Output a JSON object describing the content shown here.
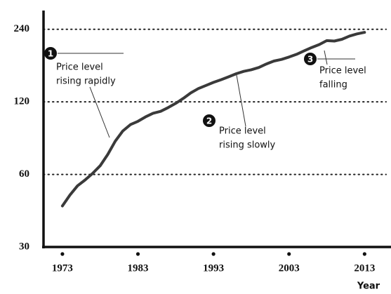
{
  "chart_data": {
    "type": "line",
    "x_label": "Year",
    "x": [
      1973,
      1974,
      1975,
      1976,
      1977,
      1978,
      1979,
      1980,
      1981,
      1982,
      1983,
      1984,
      1985,
      1986,
      1987,
      1988,
      1989,
      1990,
      1991,
      1992,
      1993,
      1994,
      1995,
      1996,
      1997,
      1998,
      1999,
      2000,
      2001,
      2002,
      2003,
      2004,
      2005,
      2006,
      2007,
      2008,
      2009,
      2010,
      2011,
      2012,
      2013
    ],
    "series": [
      {
        "name": "Price level",
        "color": "#3a3a3a",
        "values": [
          44.4,
          49.3,
          53.8,
          56.9,
          60.6,
          65.2,
          72.6,
          82.4,
          90.9,
          96.5,
          99.6,
          103.9,
          107.6,
          109.6,
          113.6,
          118.3,
          124.0,
          130.7,
          136.2,
          140.3,
          144.5,
          148.2,
          152.4,
          156.9,
          160.5,
          163.0,
          166.6,
          172.2,
          177.1,
          179.9,
          184.0,
          188.9,
          195.3,
          201.6,
          207.3,
          215.3,
          214.5,
          218.1,
          224.9,
          229.6,
          233.0
        ]
      }
    ],
    "xlim": [
      1970.5,
      2016.5
    ],
    "xticks": [
      1973,
      1983,
      1993,
      2003,
      2013
    ],
    "ylim": [
      30,
      287
    ],
    "yticks": [
      30,
      60,
      120,
      240
    ],
    "log_y": true,
    "grid": true,
    "annotations": [
      {
        "number": 1,
        "lines": [
          "Price level",
          "rising rapidly"
        ]
      },
      {
        "number": 2,
        "lines": [
          "Price level",
          "rising slowly"
        ]
      },
      {
        "number": 3,
        "lines": [
          "Price level",
          "falling"
        ]
      }
    ]
  }
}
